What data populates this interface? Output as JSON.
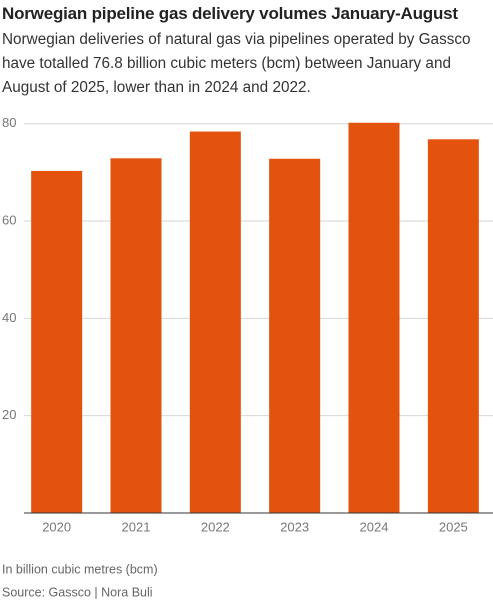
{
  "chart_data": {
    "type": "bar",
    "title": "Norwegian pipeline gas delivery volumes January-August",
    "subtitle": "Norwegian deliveries of natural gas via pipelines operated by Gassco have totalled 76.8 billion cubic meters (bcm) between January and August of 2025, lower than in 2024 and 2022.",
    "categories": [
      "2020",
      "2021",
      "2022",
      "2023",
      "2024",
      "2025"
    ],
    "values": [
      70.3,
      72.9,
      78.4,
      72.8,
      80.2,
      76.8
    ],
    "color": "#e3530d",
    "ylim": [
      0,
      82
    ],
    "yticks": [
      20,
      40,
      60,
      80
    ],
    "grid": true,
    "note": "In billion cubic metres (bcm)",
    "source": "Source: Gassco | Nora Buli"
  }
}
